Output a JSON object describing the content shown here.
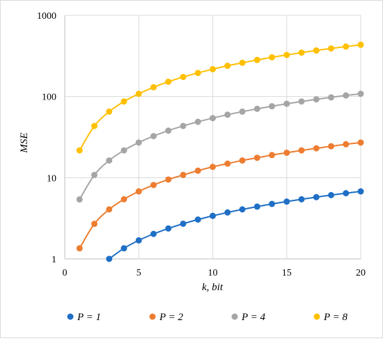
{
  "chart_data": {
    "type": "line",
    "title": "",
    "xlabel": "k, bit",
    "ylabel": "MSE",
    "x_ticks": [
      "0",
      "5",
      "10",
      "15",
      "20"
    ],
    "y_ticks": [
      "1",
      "10",
      "100",
      "1000"
    ],
    "xlim": [
      0,
      20
    ],
    "ylim": [
      1,
      1000
    ],
    "y_scale": "log",
    "grid": true,
    "legend_position": "bottom",
    "series": [
      {
        "name": "P = 1",
        "color": "#1f6fc6",
        "x": [
          3,
          4,
          5,
          6,
          7,
          8,
          9,
          10,
          11,
          12,
          13,
          14,
          15,
          16,
          17,
          18,
          19,
          20
        ],
        "y": [
          1.0,
          1.35,
          1.69,
          2.03,
          2.37,
          2.71,
          3.05,
          3.39,
          3.73,
          4.07,
          4.4,
          4.75,
          5.08,
          5.42,
          5.76,
          6.1,
          6.44,
          6.78
        ]
      },
      {
        "name": "P = 2",
        "color": "#ed7d31",
        "x": [
          1,
          2,
          3,
          4,
          5,
          6,
          7,
          8,
          9,
          10,
          11,
          12,
          13,
          14,
          15,
          16,
          17,
          18,
          19,
          20
        ],
        "y": [
          1.35,
          2.7,
          4.07,
          5.42,
          6.78,
          8.13,
          9.49,
          10.8,
          12.2,
          13.6,
          14.9,
          16.3,
          17.6,
          19.0,
          20.3,
          21.7,
          23.0,
          24.4,
          25.8,
          27.1
        ]
      },
      {
        "name": "P = 4",
        "color": "#a5a5a5",
        "x": [
          1,
          2,
          3,
          4,
          5,
          6,
          7,
          8,
          9,
          10,
          11,
          12,
          13,
          14,
          15,
          16,
          17,
          18,
          19,
          20
        ],
        "y": [
          5.4,
          10.8,
          16.3,
          21.7,
          27.1,
          32.5,
          38.0,
          43.4,
          48.8,
          54.2,
          59.7,
          65.1,
          70.5,
          75.9,
          81.4,
          86.8,
          92.2,
          97.6,
          103,
          108
        ]
      },
      {
        "name": "P = 8",
        "color": "#ffc000",
        "x": [
          1,
          2,
          3,
          4,
          5,
          6,
          7,
          8,
          9,
          10,
          11,
          12,
          13,
          14,
          15,
          16,
          17,
          18,
          19,
          20
        ],
        "y": [
          21.7,
          43.4,
          65.1,
          86.8,
          108,
          130,
          152,
          174,
          195,
          217,
          239,
          260,
          282,
          304,
          325,
          347,
          369,
          391,
          412,
          434
        ]
      }
    ]
  }
}
